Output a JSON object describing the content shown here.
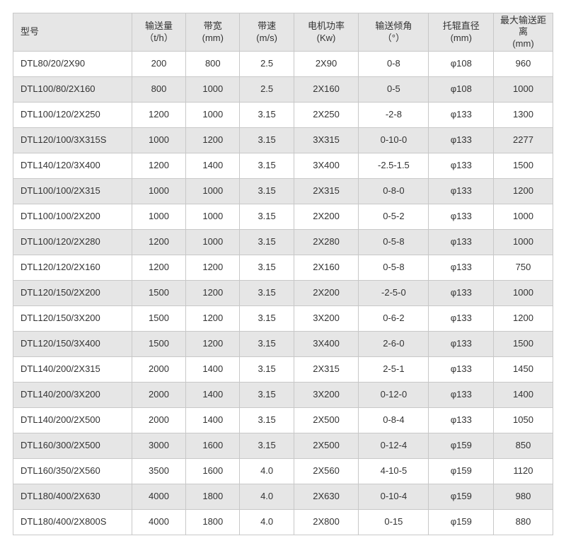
{
  "table": {
    "type": "table",
    "background_color": "#ffffff",
    "border_color": "#c8c8c8",
    "text_color": "#333333",
    "fontsize": 13,
    "header_bg": "#e6e6e6",
    "row_alt_bg": "#e6e6e6",
    "row_bg": "#ffffff",
    "col_widths_pct": [
      22,
      10,
      10,
      10,
      12,
      13,
      12,
      11
    ],
    "col_align": [
      "left",
      "center",
      "center",
      "center",
      "center",
      "center",
      "center",
      "center"
    ],
    "columns": [
      "型号",
      "输送量\n（t/h）",
      "带宽\n(mm)",
      "带速\n(m/s)",
      "电机功率\n(Kw)",
      "输送倾角\n（°）",
      "托辊直径\n(mm)",
      "最大输送距离\n(mm)"
    ],
    "rows": [
      [
        "DTL80/20/2X90",
        "200",
        "800",
        "2.5",
        "2X90",
        "0-8",
        "φ108",
        "960"
      ],
      [
        "DTL100/80/2X160",
        "800",
        "1000",
        "2.5",
        "2X160",
        "0-5",
        "φ108",
        "1000"
      ],
      [
        "DTL100/120/2X250",
        "1200",
        "1000",
        "3.15",
        "2X250",
        "-2-8",
        "φ133",
        "1300"
      ],
      [
        "DTL120/100/3X315S",
        "1000",
        "1200",
        "3.15",
        "3X315",
        "0-10-0",
        "φ133",
        "2277"
      ],
      [
        "DTL140/120/3X400",
        "1200",
        "1400",
        "3.15",
        "3X400",
        "-2.5-1.5",
        "φ133",
        "1500"
      ],
      [
        "DTL100/100/2X315",
        "1000",
        "1000",
        "3.15",
        "2X315",
        "0-8-0",
        "φ133",
        "1200"
      ],
      [
        "DTL100/100/2X200",
        "1000",
        "1000",
        "3.15",
        "2X200",
        "0-5-2",
        "φ133",
        "1000"
      ],
      [
        "DTL100/120/2X280",
        "1200",
        "1000",
        "3.15",
        "2X280",
        "0-5-8",
        "φ133",
        "1000"
      ],
      [
        "DTL120/120/2X160",
        "1200",
        "1200",
        "3.15",
        "2X160",
        "0-5-8",
        "φ133",
        "750"
      ],
      [
        "DTL120/150/2X200",
        "1500",
        "1200",
        "3.15",
        "2X200",
        "-2-5-0",
        "φ133",
        "1000"
      ],
      [
        "DTL120/150/3X200",
        "1500",
        "1200",
        "3.15",
        "3X200",
        "0-6-2",
        "φ133",
        "1200"
      ],
      [
        "DTL120/150/3X400",
        "1500",
        "1200",
        "3.15",
        "3X400",
        "2-6-0",
        "φ133",
        "1500"
      ],
      [
        "DTL140/200/2X315",
        "2000",
        "1400",
        "3.15",
        "2X315",
        "2-5-1",
        "φ133",
        "1450"
      ],
      [
        "DTL140/200/3X200",
        "2000",
        "1400",
        "3.15",
        "3X200",
        "0-12-0",
        "φ133",
        "1400"
      ],
      [
        "DTL140/200/2X500",
        "2000",
        "1400",
        "3.15",
        "2X500",
        "0-8-4",
        "φ133",
        "1050"
      ],
      [
        "DTL160/300/2X500",
        "3000",
        "1600",
        "3.15",
        "2X500",
        "0-12-4",
        "φ159",
        "850"
      ],
      [
        "DTL160/350/2X560",
        "3500",
        "1600",
        "4.0",
        "2X560",
        "4-10-5",
        "φ159",
        "1120"
      ],
      [
        "DTL180/400/2X630",
        "4000",
        "1800",
        "4.0",
        "2X630",
        "0-10-4",
        "φ159",
        "980"
      ],
      [
        "DTL180/400/2X800S",
        "4000",
        "1800",
        "4.0",
        "2X800",
        "0-15",
        "φ159",
        "880"
      ]
    ]
  }
}
